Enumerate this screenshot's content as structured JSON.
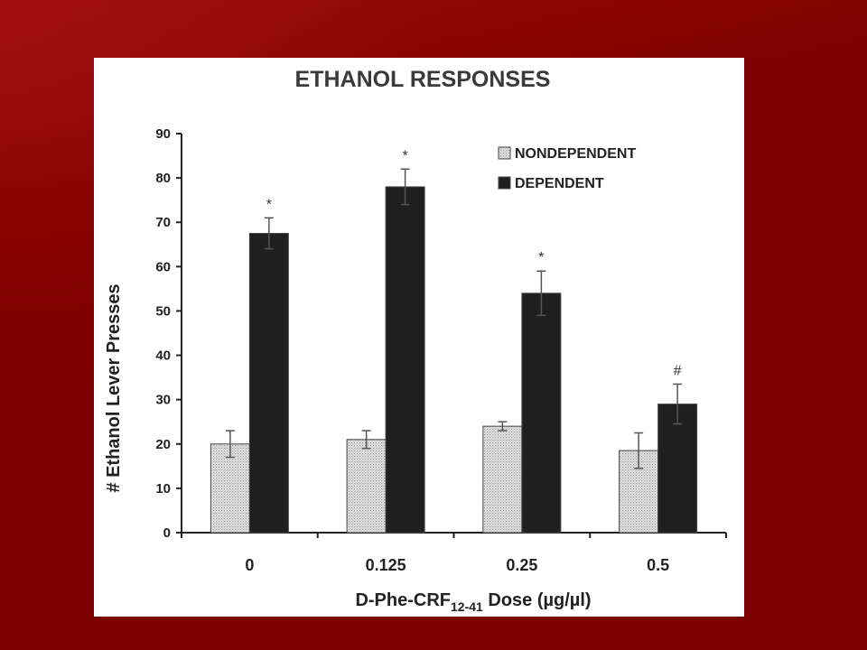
{
  "chart_data": {
    "type": "bar",
    "title": "ETHANOL RESPONSES",
    "ylabel": "# Ethanol Lever Presses",
    "xlabel": {
      "prefix": "D-Phe-CRF",
      "subscript": "12-41",
      "suffix": " Dose (µg/µl)"
    },
    "ylim": [
      0,
      90
    ],
    "yticks": [
      0,
      10,
      20,
      30,
      40,
      50,
      60,
      70,
      80,
      90
    ],
    "categories": [
      "0",
      "0.125",
      "0.25",
      "0.5"
    ],
    "series": [
      {
        "name": "NONDEPENDENT",
        "values": [
          20,
          21,
          24,
          18.5
        ],
        "errors": [
          3,
          2,
          1,
          4
        ],
        "color": "#dcdcdc",
        "pattern": "dotted"
      },
      {
        "name": "DEPENDENT",
        "values": [
          67.5,
          78,
          54,
          29
        ],
        "errors": [
          3.5,
          4,
          5,
          4.5
        ],
        "color": "#1f1f1f"
      }
    ],
    "annotations": [
      "*",
      "*",
      "*",
      "#"
    ],
    "legend_position": "top-right",
    "grid": false
  },
  "colors": {
    "slide_background": "#800000",
    "panel_background": "#ffffff",
    "axis": "#222222"
  }
}
